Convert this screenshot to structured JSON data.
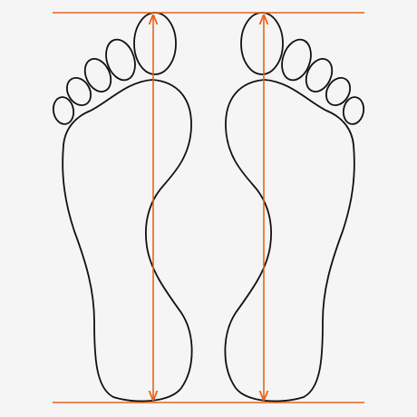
{
  "colors": {
    "background": "#f5f5f5",
    "outline": "#111111",
    "measure_line": "#e8641b"
  },
  "diagram": {
    "feet": [
      "left-foot-outline",
      "right-foot-outline"
    ],
    "toes_per_foot": 5,
    "measurements": [
      "heel-to-toe-length-left",
      "heel-to-toe-length-right"
    ],
    "reference_lines": [
      "top-reference-line",
      "bottom-reference-line"
    ]
  }
}
